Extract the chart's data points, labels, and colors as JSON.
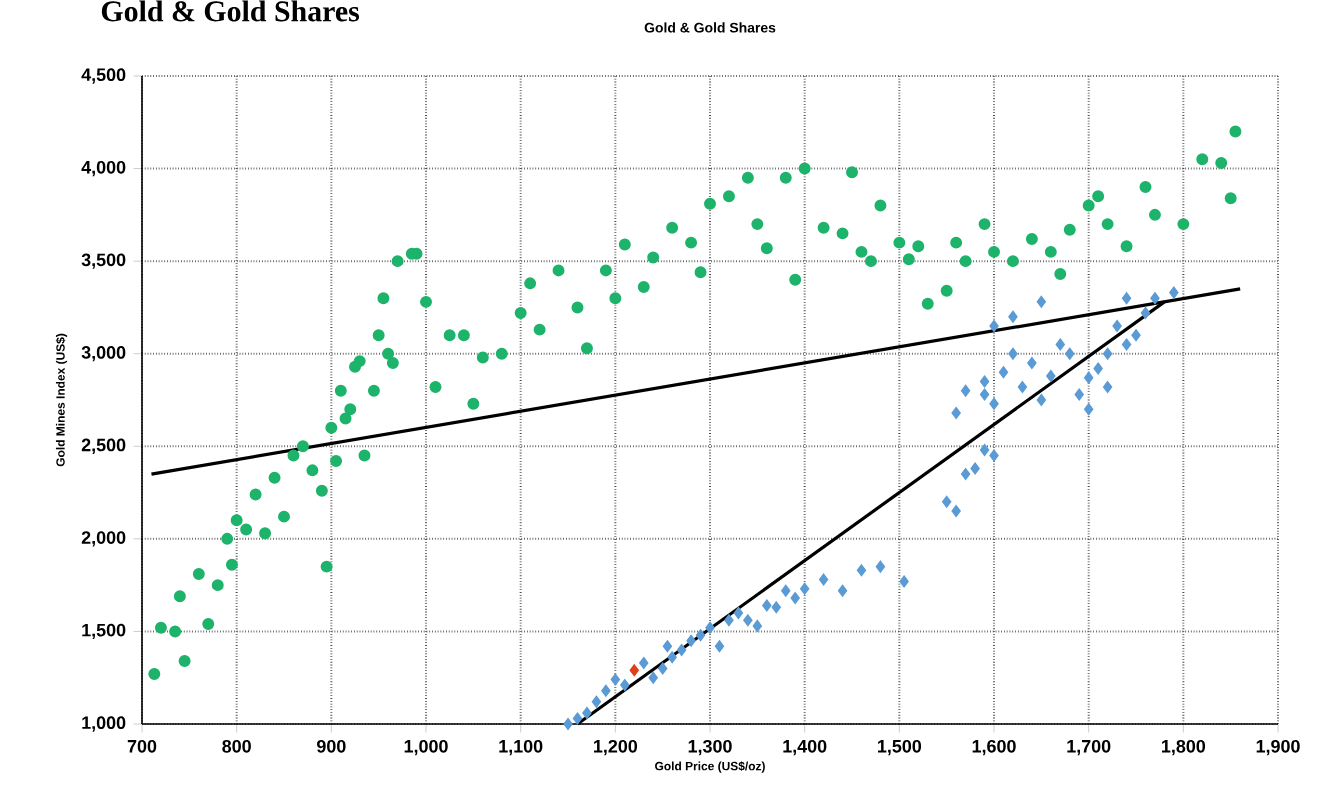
{
  "chart_data": {
    "type": "scatter",
    "title": "Gold & Gold Shares",
    "xlabel": "Gold Price (US$/oz)",
    "ylabel": "Gold Mines Index (US$)",
    "annotations": [
      "Gold & Gold Shares"
    ],
    "xlim": [
      700,
      1900
    ],
    "ylim": [
      1000,
      4500
    ],
    "xticks": [
      700,
      800,
      900,
      {
        "value": 1000,
        "label": "1,000"
      },
      {
        "value": 1100,
        "label": "1,100"
      },
      {
        "value": 1200,
        "label": "1,200"
      },
      {
        "value": 1300,
        "label": "1,300"
      },
      {
        "value": 1400,
        "label": "1,400"
      },
      {
        "value": 1500,
        "label": "1,500"
      },
      {
        "value": 1600,
        "label": "1,600"
      },
      {
        "value": 1700,
        "label": "1,700"
      },
      {
        "value": 1800,
        "label": "1,800"
      },
      {
        "value": 1900,
        "label": "1,900"
      }
    ],
    "yticks": [
      {
        "value": 1000,
        "label": "1,000"
      },
      {
        "value": 1500,
        "label": "1,500"
      },
      {
        "value": 2000,
        "label": "2,000"
      },
      {
        "value": 2500,
        "label": "2,500"
      },
      {
        "value": 3000,
        "label": "3,000"
      },
      {
        "value": 3500,
        "label": "3,500"
      },
      {
        "value": 4000,
        "label": "4,000"
      },
      {
        "value": 4500,
        "label": "4,500"
      }
    ],
    "grid": true,
    "series": [
      {
        "marker": "circle",
        "color": "#1db36b",
        "x": [
          713,
          720,
          735,
          740,
          745,
          760,
          770,
          780,
          790,
          795,
          800,
          810,
          820,
          830,
          840,
          850,
          860,
          870,
          880,
          890,
          895,
          900,
          905,
          910,
          915,
          920,
          925,
          930,
          935,
          945,
          950,
          955,
          960,
          965,
          970,
          985,
          990,
          1000,
          1010,
          1025,
          1040,
          1050,
          1060,
          1080,
          1100,
          1110,
          1120,
          1140,
          1160,
          1170,
          1190,
          1200,
          1210,
          1230,
          1240,
          1260,
          1280,
          1290,
          1300,
          1320,
          1340,
          1350,
          1360,
          1380,
          1400,
          1390,
          1420,
          1440,
          1450,
          1460,
          1470,
          1480,
          1500,
          1510,
          1520,
          1530,
          1550,
          1560,
          1570,
          1590,
          1600,
          1620,
          1640,
          1660,
          1670,
          1680,
          1700,
          1710,
          1720,
          1740,
          1760,
          1770,
          1800,
          1820,
          1840,
          1850,
          1855
        ],
        "values": [
          1270,
          1520,
          1500,
          1690,
          1340,
          1810,
          1540,
          1750,
          2000,
          1860,
          2100,
          2050,
          2240,
          2030,
          2330,
          2120,
          2450,
          2500,
          2370,
          2260,
          1850,
          2600,
          2420,
          2800,
          2650,
          2700,
          2930,
          2960,
          2450,
          2800,
          3100,
          3300,
          3000,
          2950,
          3500,
          3540,
          3540,
          3280,
          2820,
          3100,
          3100,
          2730,
          2980,
          3000,
          3220,
          3380,
          3130,
          3450,
          3250,
          3030,
          3450,
          3300,
          3590,
          3360,
          3520,
          3680,
          3600,
          3440,
          3810,
          3850,
          3950,
          3700,
          3570,
          3950,
          4000,
          3400,
          3680,
          3650,
          3980,
          3550,
          3500,
          3800,
          3600,
          3510,
          3580,
          3270,
          3340,
          3600,
          3500,
          3700,
          3550,
          3500,
          3620,
          3550,
          3430,
          3670,
          3800,
          3850,
          3700,
          3580,
          3900,
          3750,
          3700,
          4050,
          4030,
          3840,
          4200
        ]
      },
      {
        "marker": "diamond",
        "color": "#5b9bd5",
        "x": [
          1150,
          1160,
          1170,
          1180,
          1190,
          1200,
          1210,
          1230,
          1240,
          1250,
          1255,
          1260,
          1270,
          1280,
          1290,
          1300,
          1310,
          1320,
          1330,
          1340,
          1350,
          1360,
          1370,
          1380,
          1390,
          1400,
          1420,
          1440,
          1460,
          1480,
          1505,
          1550,
          1560,
          1570,
          1580,
          1590,
          1600,
          1560,
          1570,
          1590,
          1600,
          1610,
          1620,
          1630,
          1640,
          1650,
          1660,
          1670,
          1680,
          1690,
          1700,
          1710,
          1720,
          1730,
          1740,
          1750,
          1760,
          1770,
          1790,
          1740,
          1590,
          1600,
          1620,
          1650,
          1700,
          1720
        ],
        "values": [
          1000,
          1030,
          1060,
          1120,
          1180,
          1240,
          1210,
          1330,
          1250,
          1300,
          1420,
          1360,
          1400,
          1450,
          1480,
          1520,
          1420,
          1560,
          1600,
          1560,
          1530,
          1640,
          1630,
          1720,
          1680,
          1730,
          1780,
          1720,
          1830,
          1850,
          1770,
          2200,
          2150,
          2350,
          2380,
          2480,
          2450,
          2680,
          2800,
          2850,
          2730,
          2900,
          3000,
          2820,
          2950,
          2750,
          2880,
          3050,
          3000,
          2780,
          2870,
          2920,
          3000,
          3150,
          3050,
          3100,
          3220,
          3300,
          3330,
          3300,
          2780,
          3150,
          3200,
          3280,
          2700,
          2820
        ]
      },
      {
        "marker": "diamond",
        "color": "#e0401a",
        "x": [
          1220
        ],
        "values": [
          1290
        ]
      },
      {
        "type": "line",
        "marker": "none",
        "color": "#000000",
        "x": [
          710,
          1860
        ],
        "values": [
          2350,
          3350
        ]
      },
      {
        "type": "line",
        "marker": "none",
        "color": "#000000",
        "x": [
          1160,
          1780
        ],
        "values": [
          1000,
          3280
        ]
      }
    ]
  }
}
